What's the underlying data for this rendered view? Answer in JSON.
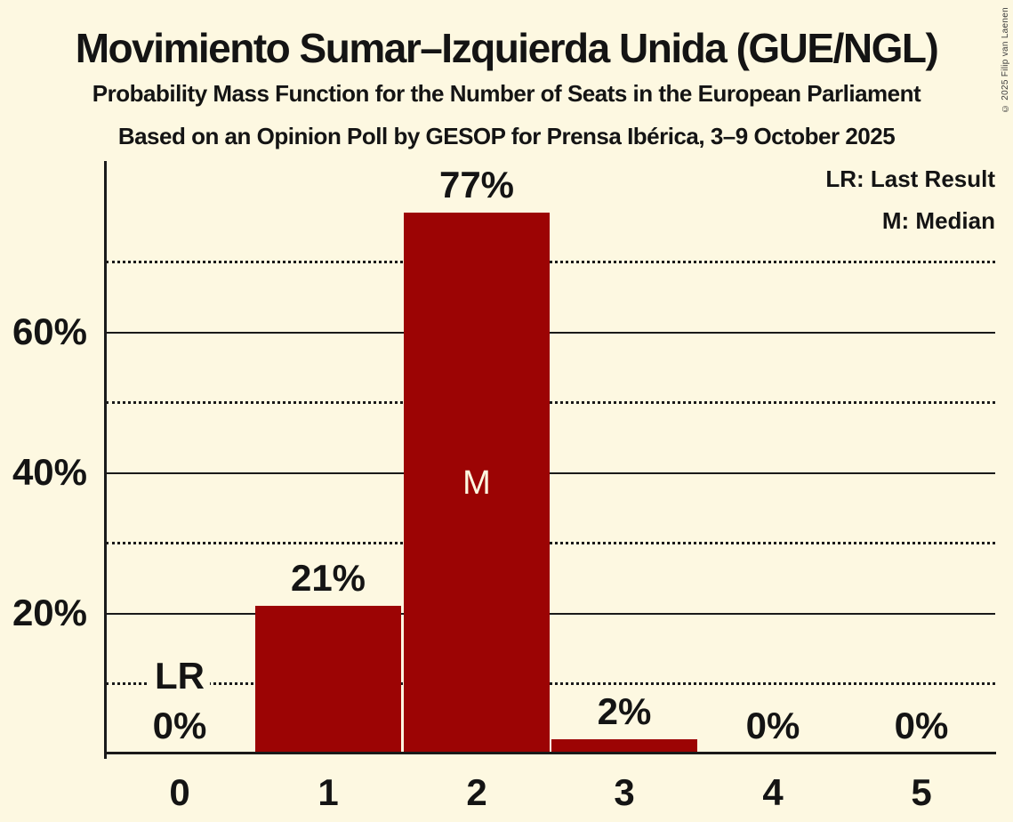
{
  "title": "Movimiento Sumar–Izquierda Unida (GUE/NGL)",
  "subtitle_line1": "Probability Mass Function for the Number of Seats in the European Parliament",
  "subtitle_line2": "Based on an Opinion Poll by GESOP for Prensa Ibérica, 3–9 October 2025",
  "copyright": "© 2025 Filip van Laenen",
  "legend": {
    "lr": "LR: Last Result",
    "m": "M: Median"
  },
  "colors": {
    "background": "#FDF8E1",
    "bar": "#9C0404",
    "text": "#141414",
    "grid": "#1A1A1A",
    "median_text": "#FDF8E1",
    "copyright_text": "#3C3C3C"
  },
  "chart_data": {
    "type": "bar",
    "title": "Movimiento Sumar–Izquierda Unida (GUE/NGL)",
    "categories": [
      "0",
      "1",
      "2",
      "3",
      "4",
      "5"
    ],
    "values": [
      0,
      21,
      77,
      2,
      0,
      0
    ],
    "value_labels": [
      "0%",
      "21%",
      "77%",
      "2%",
      "0%",
      "0%"
    ],
    "xlabel": "",
    "ylabel": "",
    "ylim": [
      0,
      84
    ],
    "y_ticks": [
      {
        "pct": 20,
        "label": "20%"
      },
      {
        "pct": 40,
        "label": "40%"
      },
      {
        "pct": 60,
        "label": "60%"
      }
    ],
    "gridlines": [
      {
        "pct": 10,
        "style": "dotted"
      },
      {
        "pct": 20,
        "style": "solid"
      },
      {
        "pct": 30,
        "style": "dotted"
      },
      {
        "pct": 40,
        "style": "solid"
      },
      {
        "pct": 50,
        "style": "dotted"
      },
      {
        "pct": 60,
        "style": "solid"
      },
      {
        "pct": 70,
        "style": "dotted"
      }
    ],
    "grid": "horizontal",
    "legend_position": "top-right",
    "median_index": 2,
    "median_label": "M",
    "last_result_index": 0,
    "last_result_label": "LR"
  }
}
